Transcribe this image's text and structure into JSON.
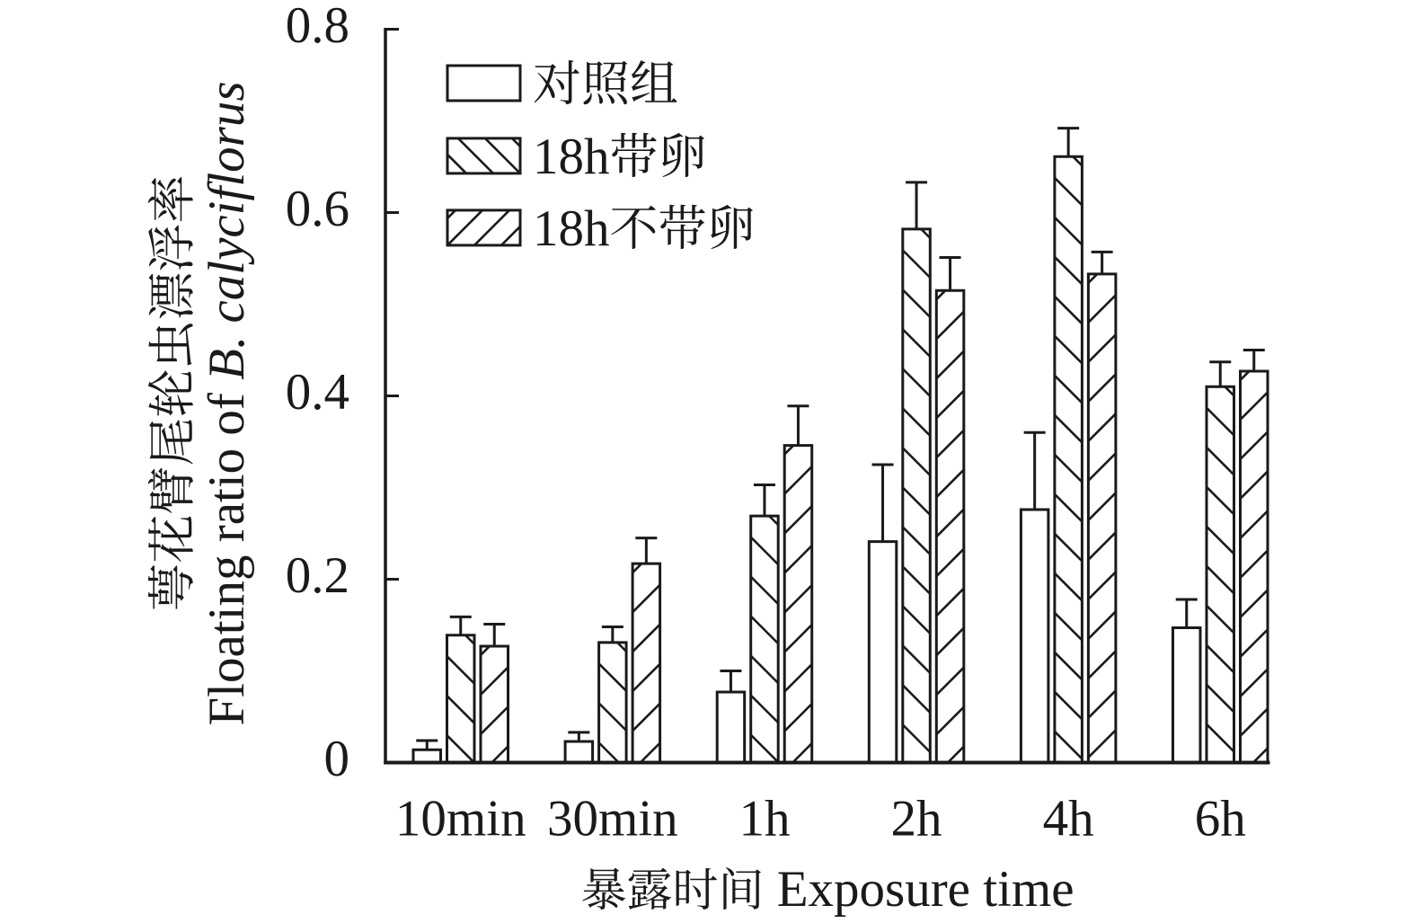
{
  "figure": {
    "background": "#ffffff",
    "ink_color": "#1a1a1a"
  },
  "chart_data": {
    "type": "bar",
    "title": "",
    "categories": [
      "10min",
      "30min",
      "1h",
      "2h",
      "4h",
      "6h"
    ],
    "series": [
      {
        "name": "对照组",
        "hatch": "none",
        "values": [
          0.014,
          0.023,
          0.077,
          0.241,
          0.276,
          0.147
        ],
        "errors": [
          0.01,
          0.01,
          0.023,
          0.084,
          0.084,
          0.031
        ]
      },
      {
        "name": "18h带卵",
        "hatch": "backslash",
        "values": [
          0.139,
          0.131,
          0.269,
          0.582,
          0.661,
          0.41
        ],
        "errors": [
          0.02,
          0.017,
          0.034,
          0.051,
          0.031,
          0.027
        ]
      },
      {
        "name": "18h不带卵",
        "hatch": "slash",
        "values": [
          0.127,
          0.217,
          0.346,
          0.515,
          0.533,
          0.427
        ],
        "errors": [
          0.024,
          0.028,
          0.043,
          0.036,
          0.024,
          0.023
        ]
      }
    ],
    "xlabel_cn": "暴露时间",
    "xlabel_en": "Exposure time",
    "ylabel_cn": "萼花臂尾轮虫漂浮率",
    "ylabel_en_prefix": "Floating ratio of ",
    "ylabel_en_italic": "B. calyciflorus",
    "ylim": [
      0,
      0.8
    ],
    "yticks": [
      0,
      0.2,
      0.4,
      0.6,
      0.8
    ],
    "ytick_labels": [
      "0",
      "0.2",
      "0.4",
      "0.6",
      "0.8"
    ],
    "legend": {
      "position": "upper-left-inside",
      "entries": [
        "对照组",
        "18h带卵",
        "18h不带卵"
      ]
    },
    "grid": false,
    "error_bars": "upper-cap"
  }
}
